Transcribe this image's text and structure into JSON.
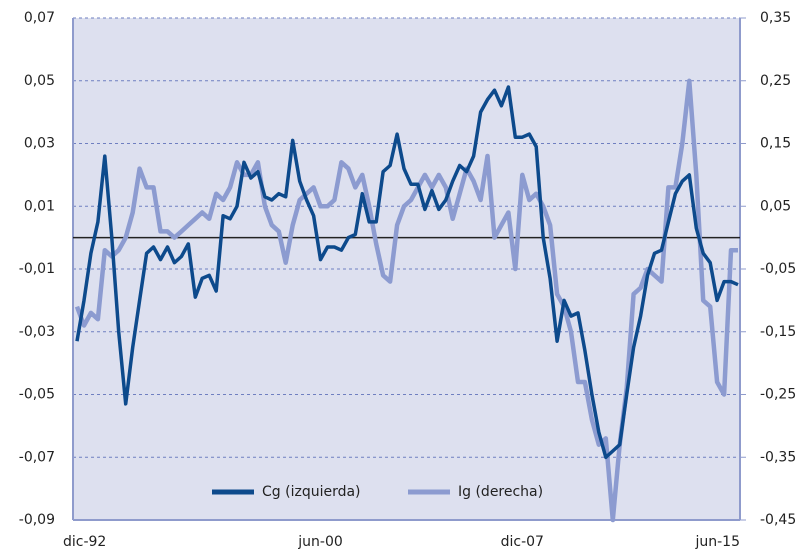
{
  "chart_data": {
    "type": "line",
    "categories": [
      "dic-92",
      null,
      null,
      null,
      null,
      null,
      null,
      null,
      null,
      null,
      null,
      null,
      null,
      null,
      null,
      null,
      null,
      null,
      null,
      null,
      null,
      null,
      null,
      null,
      null,
      null,
      null,
      null,
      null,
      null,
      null,
      null,
      null,
      null,
      null,
      "jun-00",
      null,
      null,
      null,
      null,
      null,
      null,
      null,
      null,
      null,
      null,
      null,
      null,
      null,
      null,
      null,
      null,
      null,
      null,
      null,
      null,
      null,
      null,
      null,
      null,
      null,
      null,
      null,
      null,
      "dic-07",
      null,
      null,
      null,
      null,
      null,
      null,
      null,
      null,
      null,
      null,
      null,
      null,
      null,
      null,
      null,
      null,
      null,
      null,
      null,
      null,
      null,
      null,
      null,
      null,
      null,
      null,
      null,
      null,
      null,
      null,
      "jun-15"
    ],
    "ylim": [
      -0.09,
      0.07
    ],
    "yticks": [
      {
        "value": 0.07,
        "label": "0,07"
      },
      {
        "value": 0.05,
        "label": "0,05"
      },
      {
        "value": 0.03,
        "label": "0,03"
      },
      {
        "value": 0.01,
        "label": "0,01"
      },
      {
        "value": -0.01,
        "label": "-0,01"
      },
      {
        "value": -0.03,
        "label": "-0,03"
      },
      {
        "value": -0.05,
        "label": "-0,05"
      },
      {
        "value": -0.07,
        "label": "-0,07"
      },
      {
        "value": -0.09,
        "label": "-0,09"
      }
    ],
    "y2lim": [
      -0.45,
      0.35
    ],
    "y2ticks": [
      {
        "value": 0.35,
        "label": "0,35"
      },
      {
        "value": 0.25,
        "label": "0,25"
      },
      {
        "value": 0.15,
        "label": "0,15"
      },
      {
        "value": 0.05,
        "label": "0,05"
      },
      {
        "value": -0.05,
        "label": "-0,05"
      },
      {
        "value": -0.15,
        "label": "-0,15"
      },
      {
        "value": -0.25,
        "label": "-0,25"
      },
      {
        "value": -0.35,
        "label": "-0,35"
      },
      {
        "value": -0.45,
        "label": "-0,45"
      }
    ],
    "grid": true,
    "legend": "bottom",
    "series": [
      {
        "name": "Cg (izquierda)",
        "color": "#0d4a8c",
        "values": [
          -0.033,
          -0.02,
          -0.005,
          0.005,
          0.026,
          0.0,
          -0.03,
          -0.053,
          -0.035,
          -0.02,
          -0.005,
          -0.003,
          -0.007,
          -0.003,
          -0.008,
          -0.006,
          -0.002,
          -0.019,
          -0.013,
          -0.012,
          -0.017,
          0.007,
          0.006,
          0.01,
          0.024,
          0.019,
          0.021,
          0.013,
          0.012,
          0.014,
          0.013,
          0.031,
          0.018,
          0.012,
          0.007,
          -0.007,
          -0.003,
          -0.003,
          -0.004,
          0.0,
          0.001,
          0.014,
          0.005,
          0.005,
          0.021,
          0.023,
          0.033,
          0.022,
          0.017,
          0.017,
          0.009,
          0.015,
          0.009,
          0.012,
          0.018,
          0.023,
          0.021,
          0.026,
          0.04,
          0.044,
          0.047,
          0.042,
          0.048,
          0.032,
          0.032,
          0.033,
          0.029,
          0.0,
          -0.013,
          -0.033,
          -0.02,
          -0.025,
          -0.024,
          -0.036,
          -0.05,
          -0.062,
          -0.07,
          -0.068,
          -0.066,
          -0.05,
          -0.035,
          -0.025,
          -0.012,
          -0.005,
          -0.004,
          0.005,
          0.014,
          0.018,
          0.02,
          0.003,
          -0.005,
          -0.008,
          -0.02,
          -0.014,
          -0.014,
          -0.015
        ]
      },
      {
        "name": "Ig (derecha)",
        "color": "#8c9bd0",
        "axis": "y2",
        "values": [
          -0.11,
          -0.14,
          -0.12,
          -0.13,
          -0.02,
          -0.03,
          -0.02,
          0.0,
          0.04,
          0.11,
          0.08,
          0.08,
          0.01,
          0.01,
          0.0,
          0.01,
          0.02,
          0.03,
          0.04,
          0.03,
          0.07,
          0.06,
          0.08,
          0.12,
          0.1,
          0.1,
          0.12,
          0.05,
          0.02,
          0.01,
          -0.04,
          0.02,
          0.06,
          0.07,
          0.08,
          0.05,
          0.05,
          0.06,
          0.12,
          0.11,
          0.08,
          0.1,
          0.05,
          -0.01,
          -0.06,
          -0.07,
          0.02,
          0.05,
          0.06,
          0.08,
          0.1,
          0.08,
          0.1,
          0.08,
          0.03,
          0.07,
          0.11,
          0.09,
          0.06,
          0.13,
          0.0,
          0.02,
          0.04,
          -0.05,
          0.1,
          0.06,
          0.07,
          0.05,
          0.02,
          -0.09,
          -0.11,
          -0.15,
          -0.23,
          -0.23,
          -0.29,
          -0.33,
          -0.32,
          -0.45,
          -0.33,
          -0.24,
          -0.09,
          -0.08,
          -0.05,
          -0.06,
          -0.07,
          0.08,
          0.08,
          0.15,
          0.25,
          0.1,
          -0.1,
          -0.11,
          -0.23,
          -0.25,
          -0.02,
          -0.02
        ]
      }
    ]
  }
}
